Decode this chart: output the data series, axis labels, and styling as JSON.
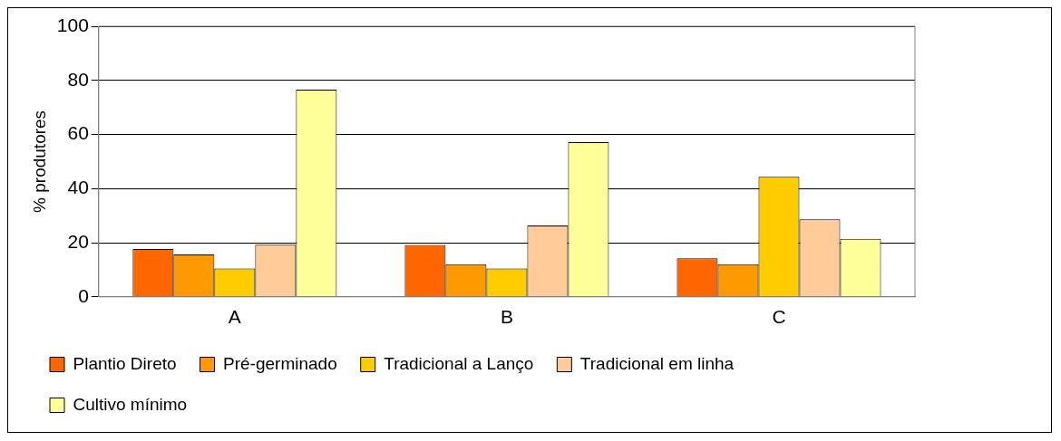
{
  "chart_data": {
    "type": "bar",
    "ylabel": "% produtores",
    "categories": [
      "A",
      "B",
      "C"
    ],
    "series": [
      {
        "name": "Plantio Direto",
        "color": "#ff6600",
        "values": [
          17.7,
          19.2,
          14.2
        ]
      },
      {
        "name": "Pré-germinado",
        "color": "#ff9900",
        "values": [
          15.7,
          12.1,
          12.1
        ]
      },
      {
        "name": "Tradicional a Lanço",
        "color": "#ffcc00",
        "values": [
          10.5,
          10.5,
          44.4
        ]
      },
      {
        "name": "Tradicional em linha",
        "color": "#ffcc99",
        "values": [
          19.3,
          26.4,
          28.6
        ]
      },
      {
        "name": "Cultivo mínimo",
        "color": "#ffff99",
        "values": [
          76.6,
          57.2,
          21.4
        ]
      }
    ],
    "ylim": [
      0,
      100
    ],
    "yticks": [
      0,
      20,
      40,
      60,
      80,
      100
    ],
    "grid": "y",
    "legend": "bottom"
  }
}
